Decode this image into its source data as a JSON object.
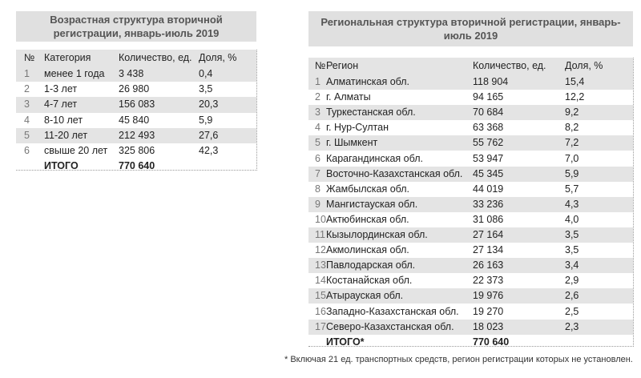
{
  "left": {
    "title": "Возрастная структура вторичной регистрации, январь-июль 2019",
    "headers": [
      "№",
      "Категория",
      "Количество, ед.",
      "Доля, %"
    ],
    "rows": [
      [
        "1",
        "менее 1 года",
        "3 438",
        "0,4"
      ],
      [
        "2",
        "1-3 лет",
        "26 980",
        "3,5"
      ],
      [
        "3",
        "4-7 лет",
        "156 083",
        "20,3"
      ],
      [
        "4",
        "8-10 лет",
        "45 840",
        "5,9"
      ],
      [
        "5",
        "11-20 лет",
        "212 493",
        "27,6"
      ],
      [
        "6",
        "свыше 20 лет",
        "325 806",
        "42,3"
      ]
    ],
    "total": {
      "label": "ИТОГО",
      "quantity": "770 640"
    }
  },
  "right": {
    "title": "Региональная структура вторичной регистрации, январь-июль 2019",
    "headers": [
      "№",
      "Регион",
      "Количество, ед.",
      "Доля, %"
    ],
    "rows": [
      [
        "1",
        "Алматинская обл.",
        "118 904",
        "15,4"
      ],
      [
        "2",
        "г. Алматы",
        "94 165",
        "12,2"
      ],
      [
        "3",
        "Туркестанская обл.",
        "70 684",
        "9,2"
      ],
      [
        "4",
        "г. Нур-Султан",
        "63 368",
        "8,2"
      ],
      [
        "5",
        "г. Шымкент",
        "55 762",
        "7,2"
      ],
      [
        "6",
        "Карагандинская обл.",
        "53 947",
        "7,0"
      ],
      [
        "7",
        "Восточно-Казахстанская обл.",
        "45 345",
        "5,9"
      ],
      [
        "8",
        "Жамбылская обл.",
        "44 019",
        "5,7"
      ],
      [
        "9",
        "Мангистауская обл.",
        "33 236",
        "4,3"
      ],
      [
        "10",
        "Актюбинская обл.",
        "31 086",
        "4,0"
      ],
      [
        "11",
        "Кызылординская обл.",
        "27 164",
        "3,5"
      ],
      [
        "12",
        "Акмолинская обл.",
        "27 134",
        "3,5"
      ],
      [
        "13",
        "Павлодарская обл.",
        "26 163",
        "3,4"
      ],
      [
        "14",
        "Костанайская обл.",
        "22 373",
        "2,9"
      ],
      [
        "15",
        "Атырауская обл.",
        "19 976",
        "2,6"
      ],
      [
        "16",
        "Западно-Казахстанская обл.",
        "19 270",
        "2,5"
      ],
      [
        "17",
        "Северо-Казахстанская обл.",
        "18 023",
        "2,3"
      ]
    ],
    "total": {
      "label": "ИТОГО*",
      "quantity": "770 640"
    }
  },
  "footnote": "* Включая 21 ед. транспортных средств, регион регистрации которых не установлен."
}
